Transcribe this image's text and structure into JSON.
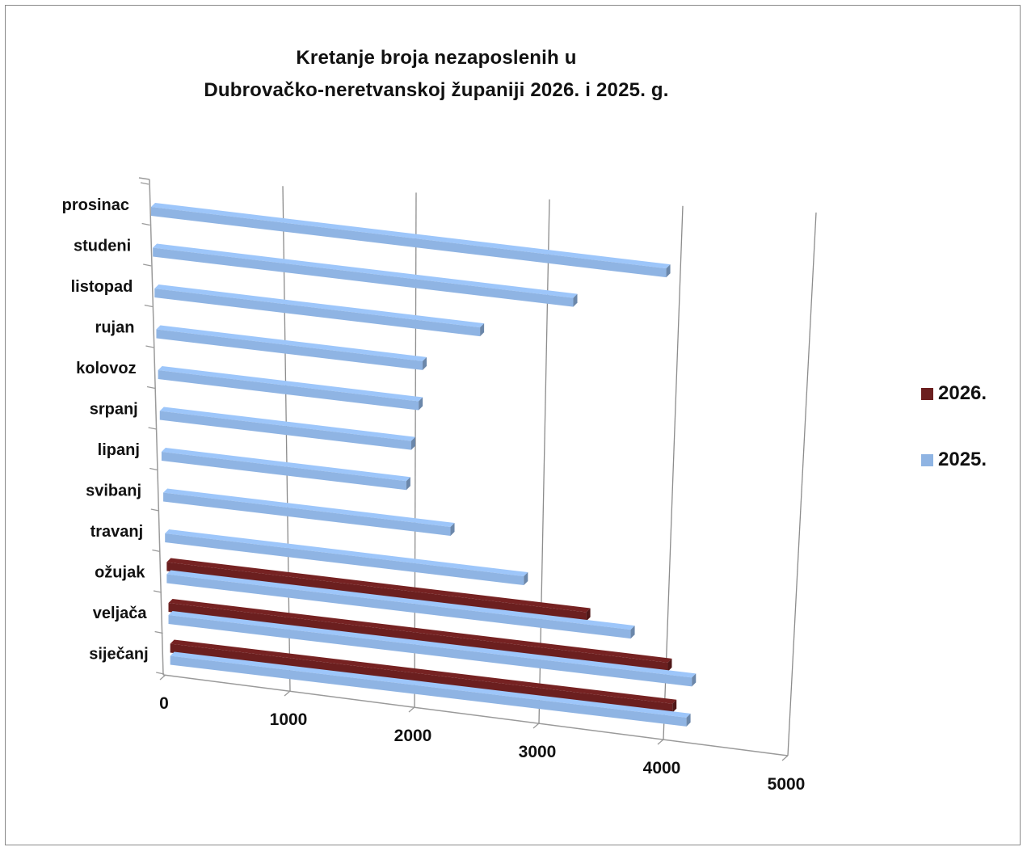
{
  "chart_data": {
    "type": "bar",
    "orientation": "horizontal",
    "title_line1": "Kretanje broja nezaposlenih u",
    "title_line2": "Dubrovačko-neretvanskoj županiji  2026. i 2025. g.",
    "categories": [
      "siječanj",
      "veljača",
      "ožujak",
      "travanj",
      "svibanj",
      "lipanj",
      "srpanj",
      "kolovoz",
      "rujan",
      "listopad",
      "studeni",
      "prosinac"
    ],
    "series": [
      {
        "name": "2026.",
        "color": "#6b1f1f",
        "values": [
          4650,
          4560,
          3780,
          null,
          null,
          null,
          null,
          null,
          null,
          null,
          null,
          null
        ]
      },
      {
        "name": "2025.",
        "color": "#8fb4e3",
        "values": [
          4780,
          4780,
          4180,
          3190,
          2520,
          2120,
          2150,
          2200,
          2220,
          2680,
          3420,
          4140
        ]
      }
    ],
    "xlim": [
      0,
      5000
    ],
    "ticks": [
      "0",
      "1000",
      "2000",
      "3000",
      "4000",
      "5000"
    ],
    "grid": true,
    "legend_position": "right"
  }
}
